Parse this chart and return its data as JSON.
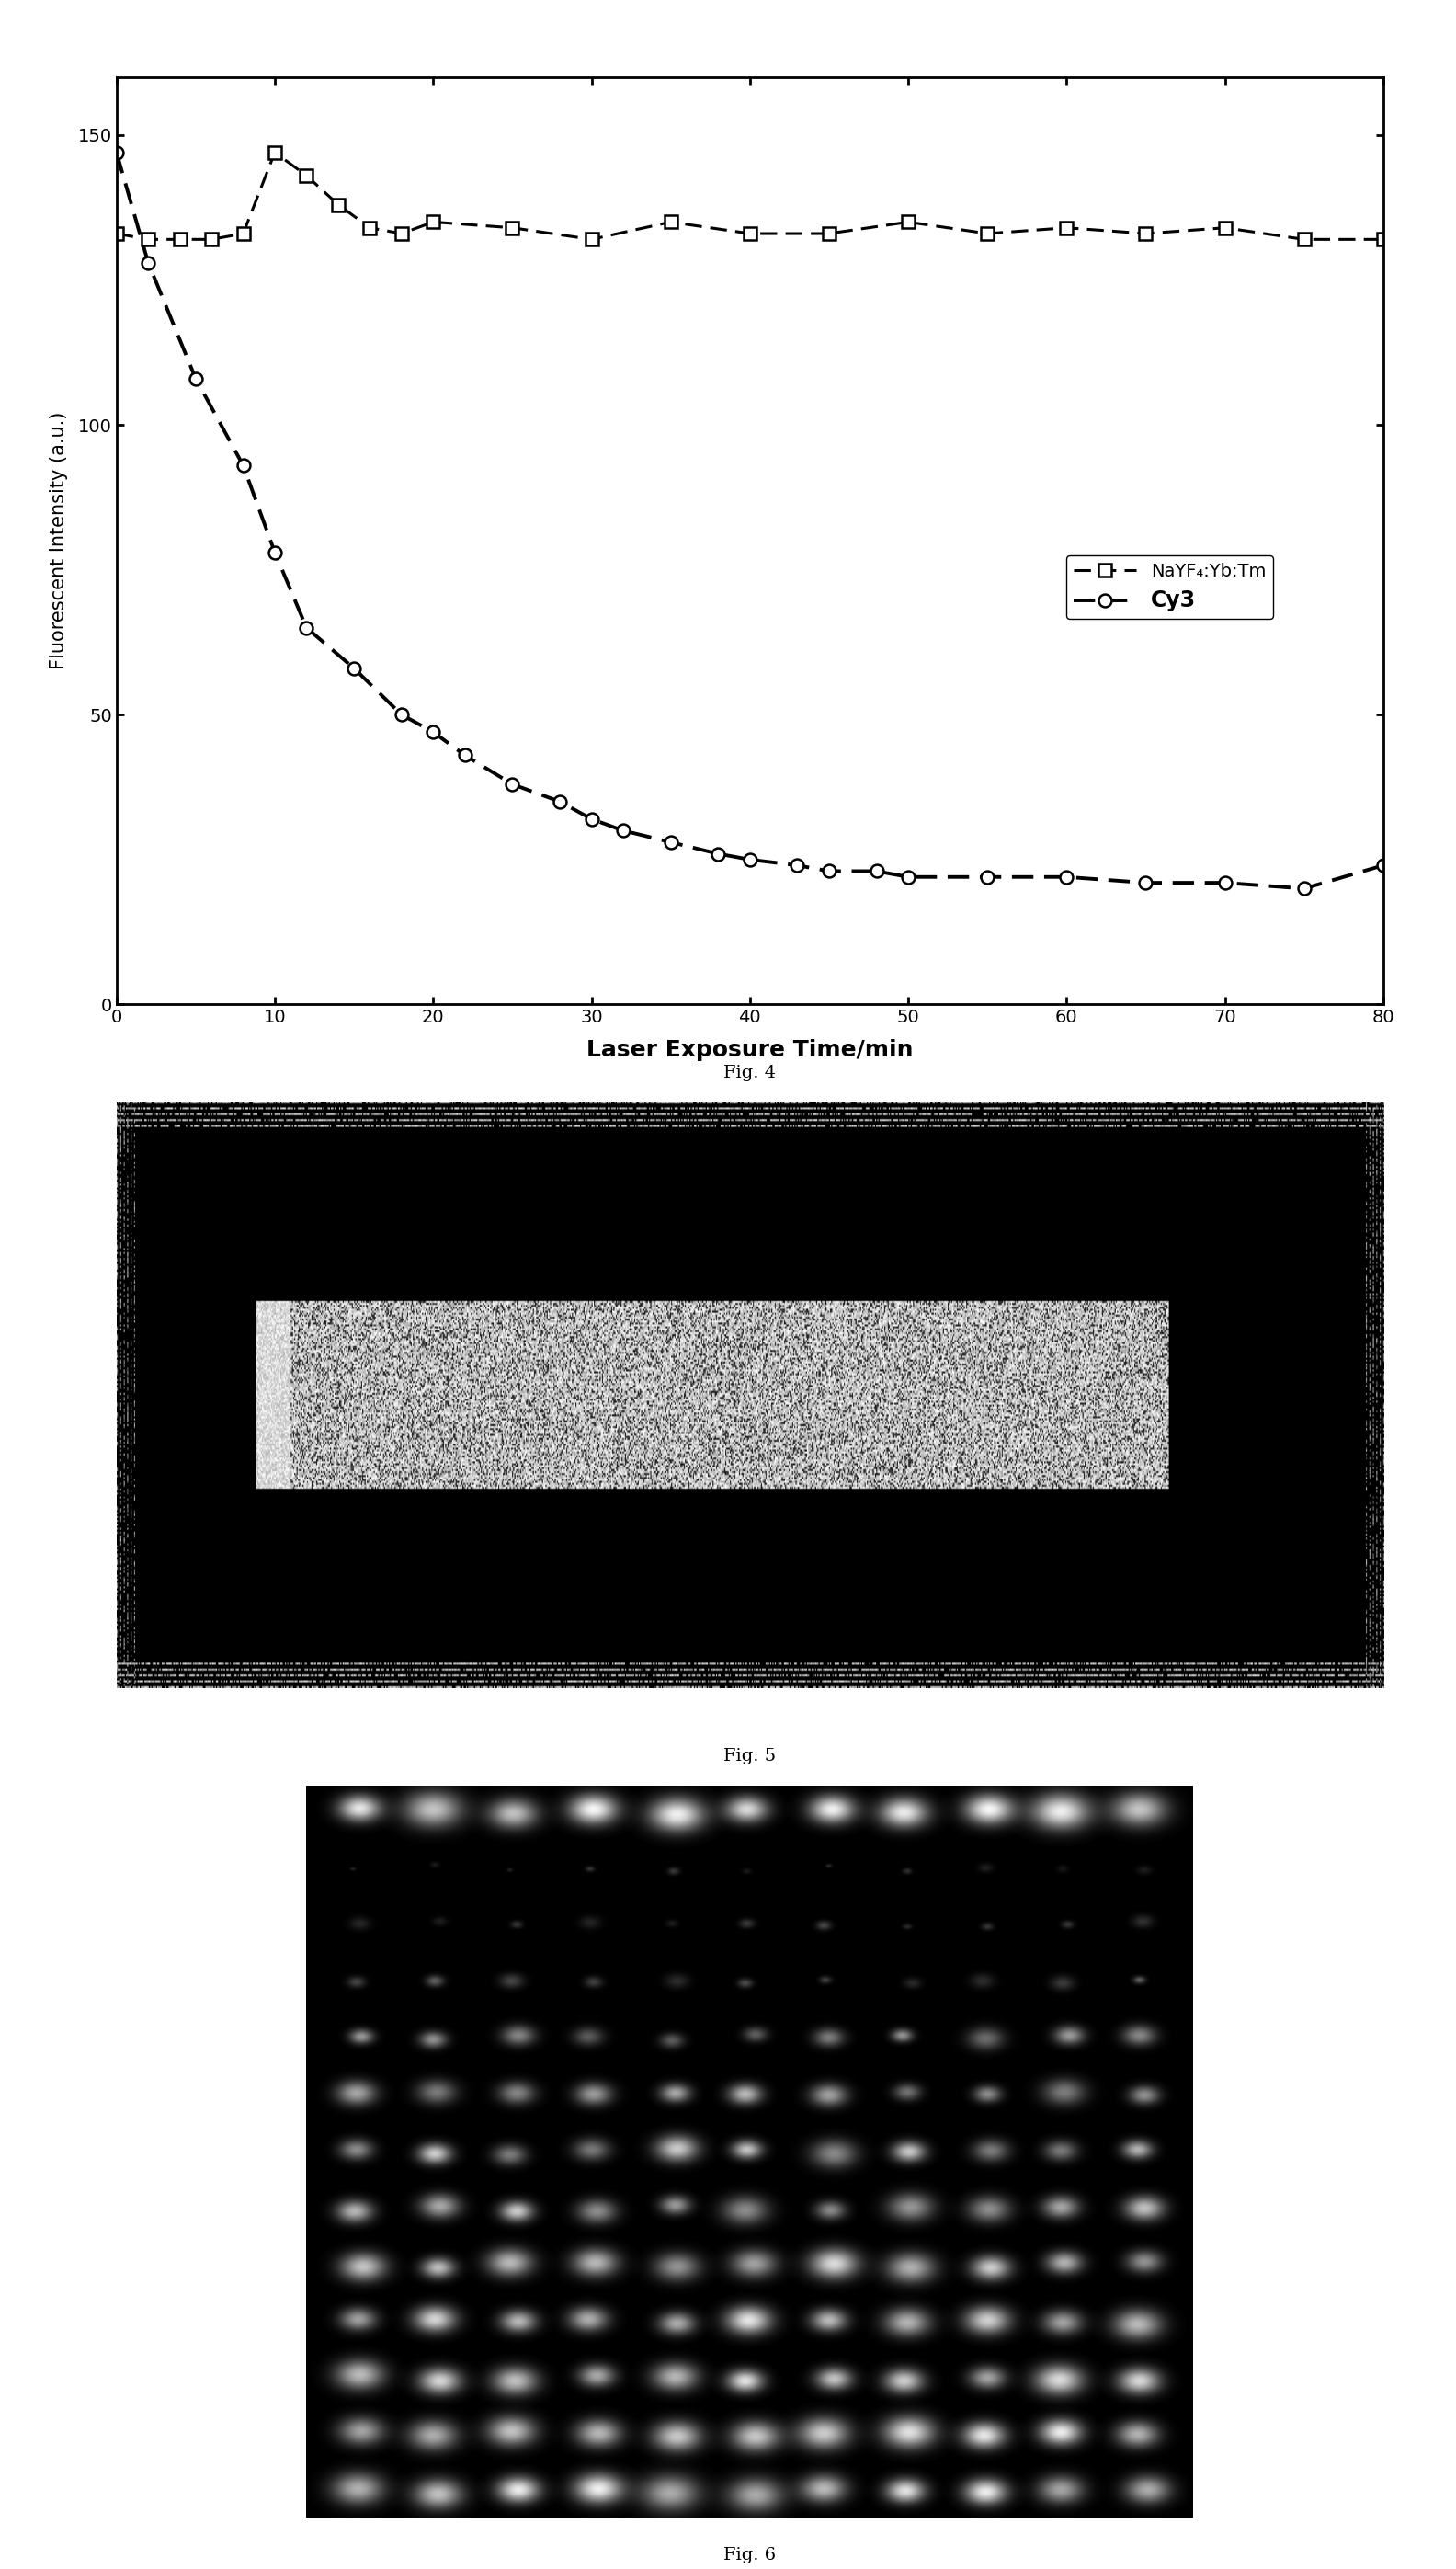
{
  "fig4": {
    "nayf4_x": [
      0,
      2,
      4,
      6,
      8,
      10,
      12,
      14,
      16,
      18,
      20,
      25,
      30,
      35,
      40,
      45,
      50,
      55,
      60,
      65,
      70,
      75,
      80
    ],
    "nayf4_y": [
      133,
      132,
      132,
      132,
      133,
      147,
      143,
      138,
      134,
      133,
      135,
      134,
      132,
      135,
      133,
      133,
      135,
      133,
      134,
      133,
      134,
      132,
      132
    ],
    "cy3_x": [
      0,
      2,
      5,
      8,
      10,
      12,
      15,
      18,
      20,
      22,
      25,
      28,
      30,
      32,
      35,
      38,
      40,
      43,
      45,
      48,
      50,
      55,
      60,
      65,
      70,
      75,
      80
    ],
    "cy3_y": [
      147,
      128,
      108,
      93,
      78,
      65,
      58,
      50,
      47,
      43,
      38,
      35,
      32,
      30,
      28,
      26,
      25,
      24,
      23,
      23,
      22,
      22,
      22,
      21,
      21,
      20,
      24
    ],
    "xlabel": "Laser Exposure Time/min",
    "ylabel": "Fluorescent Intensity (a.u.)",
    "xlim": [
      0,
      80
    ],
    "ylim": [
      0,
      160
    ],
    "yticks": [
      0,
      50,
      100,
      150
    ],
    "xticks": [
      0,
      10,
      20,
      30,
      40,
      50,
      60,
      70,
      80
    ],
    "legend_nayf4": "NaYF₄:Yb:Tm",
    "legend_cy3": "Cy3",
    "fig_label": "Fig. 4"
  },
  "fig5": {
    "fig_label": "Fig. 5"
  },
  "fig6": {
    "fig_label": "Fig. 6",
    "n_cols": 11,
    "n_rows": 13
  },
  "background_color": "#ffffff",
  "axis_fontsize": 15,
  "tick_fontsize": 13,
  "legend_fontsize": 12,
  "figcaption_fontsize": 14
}
